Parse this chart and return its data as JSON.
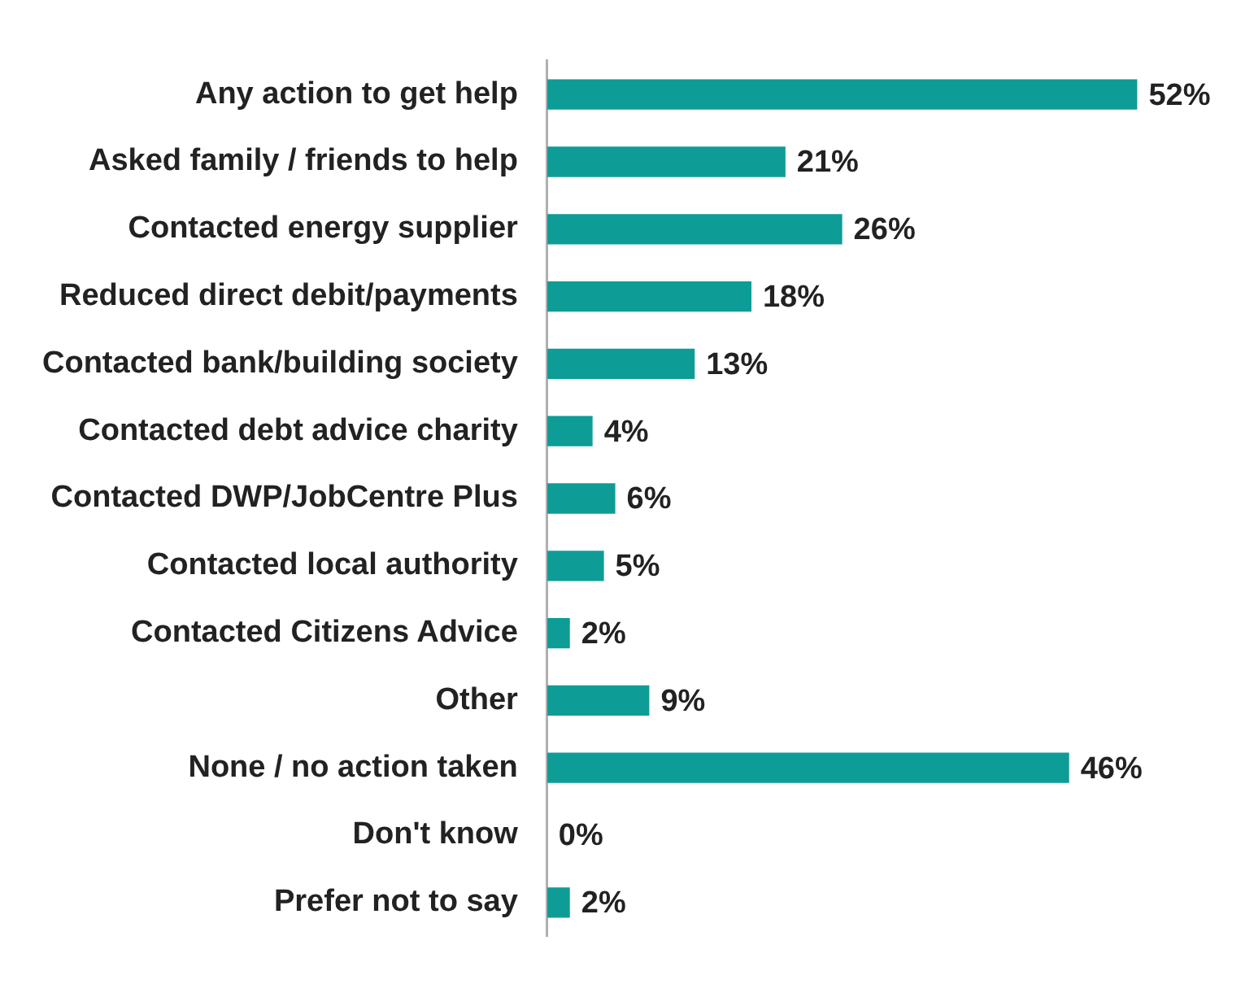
{
  "chart_data": {
    "type": "bar",
    "orientation": "horizontal",
    "categories": [
      "Any action to get help",
      "Asked family / friends to help",
      "Contacted energy supplier",
      "Reduced direct debit/payments",
      "Contacted bank/building society",
      "Contacted debt advice charity",
      "Contacted DWP/JobCentre Plus",
      "Contacted local authority",
      "Contacted Citizens Advice",
      "Other",
      "None / no action taken",
      "Don't know",
      "Prefer not to say"
    ],
    "values": [
      52,
      21,
      26,
      18,
      13,
      4,
      6,
      5,
      2,
      9,
      46,
      0,
      2
    ],
    "value_labels": [
      "52%",
      "21%",
      "26%",
      "18%",
      "13%",
      "4%",
      "6%",
      "5%",
      "2%",
      "9%",
      "46%",
      "0%",
      "2%"
    ],
    "color": "#0e9c97",
    "legend": false
  }
}
